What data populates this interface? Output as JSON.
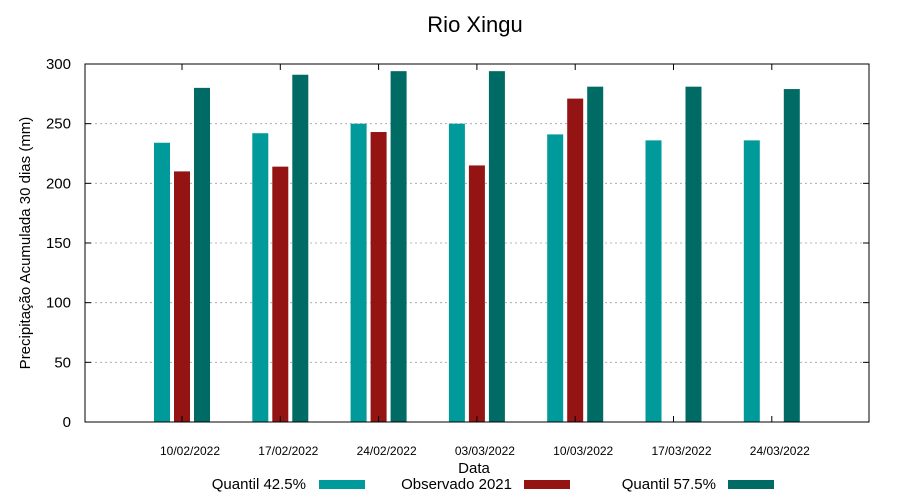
{
  "chart_data": {
    "type": "bar",
    "title": "Rio Xingu",
    "xlabel": "Data",
    "ylabel": "Precipitação Acumulada 30 dias (mm)",
    "ylim": [
      0,
      300
    ],
    "yticks": [
      0,
      50,
      100,
      150,
      200,
      250,
      300
    ],
    "grid": true,
    "legend_position": "bottom",
    "categories": [
      "10/02/2022",
      "17/02/2022",
      "24/02/2022",
      "03/03/2022",
      "10/03/2022",
      "17/03/2022",
      "24/03/2022"
    ],
    "series": [
      {
        "name": "Quantil 42.5%",
        "color": "#009a9a",
        "values": [
          234,
          242,
          250,
          250,
          241,
          236,
          236
        ]
      },
      {
        "name": "Observado 2021",
        "color": "#941414",
        "values": [
          210,
          214,
          243,
          215,
          271,
          null,
          null
        ]
      },
      {
        "name": "Quantil 57.5%",
        "color": "#006a64",
        "values": [
          280,
          291,
          294,
          294,
          281,
          281,
          279
        ]
      }
    ]
  }
}
